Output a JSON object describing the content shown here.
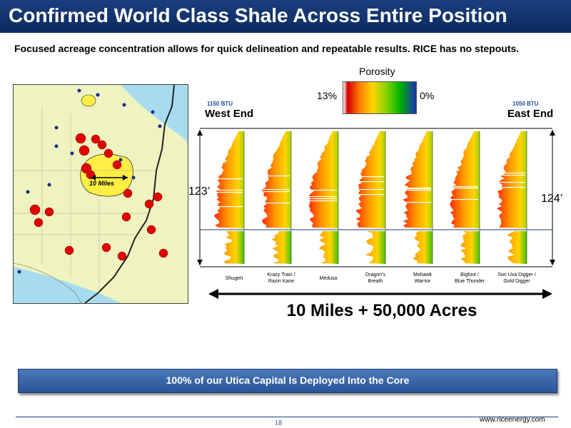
{
  "header": {
    "title": "Confirmed World Class Shale Across Entire Position"
  },
  "subtitle": "Focused acreage concentration allows for quick delineation and repeatable results.  RICE has no stepouts.",
  "map": {
    "scale_label": "10 Miles"
  },
  "porosity_legend": {
    "title": "Porosity",
    "max_label": "13%",
    "min_label": "0%"
  },
  "west": {
    "btu": "1150 BTU",
    "label": "West End",
    "thickness": "123’"
  },
  "east": {
    "btu": "1050 BTU",
    "label": "East End",
    "thickness": "124’"
  },
  "wells": [
    {
      "line1": "Shugert",
      "line2": ""
    },
    {
      "line1": "Krazy Train /",
      "line2": "Razin Kane"
    },
    {
      "line1": "Medusa",
      "line2": ""
    },
    {
      "line1": "Dragon’s",
      "line2": "Breath"
    },
    {
      "line1": "Mohawk",
      "line2": "Warrior"
    },
    {
      "line1": "Bigfoot /",
      "line2": "Blue Thunder"
    },
    {
      "line1": "Son Uva Digger /",
      "line2": "Gold Digger"
    }
  ],
  "summary": "10 Miles  +  50,000 Acres",
  "banner": "100% of our Utica Capital Is Deployed Into the Core",
  "footer": {
    "page": "18",
    "url": "www.riceenergy.com"
  },
  "colors": {
    "title_bar": "#0c2a5e",
    "btu_text": "#1f4e9f",
    "banner": "#2a569a",
    "well_dot": "#e00000",
    "core_fill": "#ffee44"
  }
}
